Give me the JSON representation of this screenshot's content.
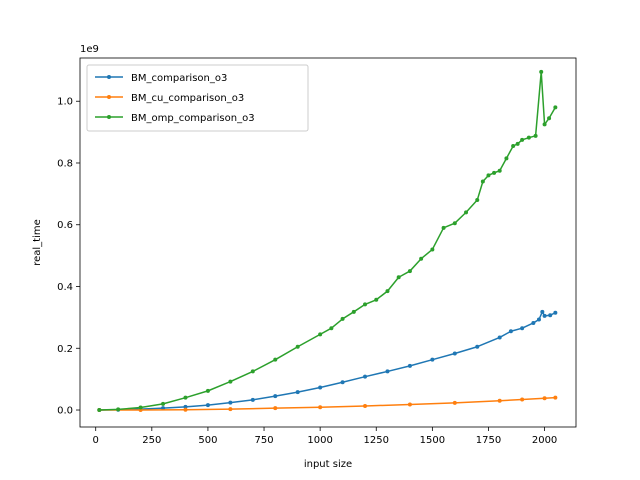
{
  "chart_data": {
    "type": "line",
    "title": "",
    "xlabel": "input size",
    "ylabel": "real_time",
    "y_offset_label": "1e9",
    "xlim": [
      -70,
      2140
    ],
    "ylim": [
      -0.055,
      1.14
    ],
    "x_ticks": [
      0,
      250,
      500,
      750,
      1000,
      1250,
      1500,
      1750,
      2000
    ],
    "y_ticks": [
      0.0,
      0.2,
      0.4,
      0.6,
      0.8,
      1.0
    ],
    "y_tick_labels": [
      "0.0",
      "0.2",
      "0.4",
      "0.6",
      "0.8",
      "1.0"
    ],
    "x_tick_labels": [
      "0",
      "250",
      "500",
      "750",
      "1000",
      "1250",
      "1500",
      "1750",
      "2000"
    ],
    "grid": false,
    "legend_position": "upper-left",
    "series": [
      {
        "name": "BM_comparison_o3",
        "color": "#1f77b4",
        "points": [
          [
            16,
            0.0
          ],
          [
            100,
            0.001
          ],
          [
            200,
            0.003
          ],
          [
            300,
            0.006
          ],
          [
            400,
            0.01
          ],
          [
            500,
            0.016
          ],
          [
            600,
            0.024
          ],
          [
            700,
            0.033
          ],
          [
            800,
            0.045
          ],
          [
            900,
            0.058
          ],
          [
            1000,
            0.073
          ],
          [
            1100,
            0.09
          ],
          [
            1200,
            0.108
          ],
          [
            1300,
            0.125
          ],
          [
            1400,
            0.143
          ],
          [
            1500,
            0.163
          ],
          [
            1600,
            0.183
          ],
          [
            1700,
            0.205
          ],
          [
            1800,
            0.235
          ],
          [
            1850,
            0.255
          ],
          [
            1900,
            0.265
          ],
          [
            1950,
            0.282
          ],
          [
            1975,
            0.293
          ],
          [
            1990,
            0.318
          ],
          [
            2000,
            0.305
          ],
          [
            2025,
            0.307
          ],
          [
            2048,
            0.315
          ]
        ]
      },
      {
        "name": "BM_cu_comparison_o3",
        "color": "#ff7f0e",
        "points": [
          [
            16,
            0.0
          ],
          [
            200,
            0.0
          ],
          [
            400,
            0.001
          ],
          [
            600,
            0.003
          ],
          [
            800,
            0.006
          ],
          [
            1000,
            0.009
          ],
          [
            1200,
            0.013
          ],
          [
            1400,
            0.018
          ],
          [
            1600,
            0.023
          ],
          [
            1800,
            0.03
          ],
          [
            1900,
            0.034
          ],
          [
            2000,
            0.038
          ],
          [
            2048,
            0.04
          ]
        ]
      },
      {
        "name": "BM_omp_comparison_o3",
        "color": "#2ca02c",
        "points": [
          [
            16,
            0.0
          ],
          [
            100,
            0.002
          ],
          [
            200,
            0.008
          ],
          [
            300,
            0.02
          ],
          [
            400,
            0.04
          ],
          [
            500,
            0.062
          ],
          [
            600,
            0.092
          ],
          [
            700,
            0.125
          ],
          [
            800,
            0.163
          ],
          [
            900,
            0.205
          ],
          [
            1000,
            0.245
          ],
          [
            1050,
            0.265
          ],
          [
            1100,
            0.295
          ],
          [
            1150,
            0.318
          ],
          [
            1200,
            0.342
          ],
          [
            1250,
            0.357
          ],
          [
            1300,
            0.385
          ],
          [
            1350,
            0.43
          ],
          [
            1400,
            0.45
          ],
          [
            1450,
            0.49
          ],
          [
            1500,
            0.52
          ],
          [
            1550,
            0.59
          ],
          [
            1600,
            0.605
          ],
          [
            1650,
            0.64
          ],
          [
            1700,
            0.68
          ],
          [
            1725,
            0.74
          ],
          [
            1750,
            0.76
          ],
          [
            1775,
            0.768
          ],
          [
            1800,
            0.775
          ],
          [
            1830,
            0.815
          ],
          [
            1860,
            0.855
          ],
          [
            1880,
            0.862
          ],
          [
            1900,
            0.875
          ],
          [
            1930,
            0.882
          ],
          [
            1960,
            0.888
          ],
          [
            1985,
            1.095
          ],
          [
            2000,
            0.925
          ],
          [
            2020,
            0.945
          ],
          [
            2048,
            0.98
          ]
        ]
      }
    ]
  }
}
